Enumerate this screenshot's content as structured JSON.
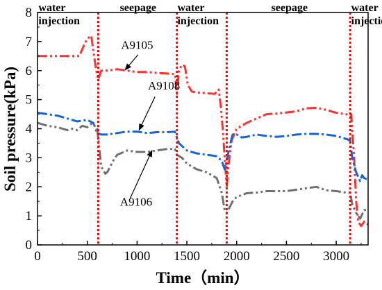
{
  "chart_data": {
    "type": "line",
    "xlabel": "Time（min）",
    "ylabel": "Soil pressure(kPa)",
    "xlim": [
      0,
      3320
    ],
    "ylim": [
      0,
      8
    ],
    "xticks": [
      "0",
      "500",
      "1000",
      "1500",
      "2000",
      "2500",
      "3000"
    ],
    "yticks": [
      "0",
      "1",
      "2",
      "3",
      "4",
      "5",
      "6",
      "7",
      "8"
    ],
    "grid": false,
    "legend": "none",
    "phase_boundaries": [
      610,
      1400,
      1900,
      3140
    ],
    "phase_labels": [
      {
        "lines": [
          "water",
          "injection"
        ],
        "x": 10,
        "align": "start"
      },
      {
        "lines": [
          "seepage"
        ],
        "x": 1010,
        "align": "middle"
      },
      {
        "lines": [
          "water",
          "injection"
        ],
        "x": 1405,
        "align": "start"
      },
      {
        "lines": [
          "seepage"
        ],
        "x": 2530,
        "align": "middle"
      },
      {
        "lines": [
          "water",
          "injection"
        ],
        "x": 3150,
        "align": "start"
      }
    ],
    "series": [
      {
        "name": "A9105",
        "color": "#ff3030",
        "dash": "14,4,3,4,3,4",
        "x": [
          0,
          100,
          200,
          300,
          420,
          470,
          500,
          540,
          560,
          590,
          610,
          640,
          700,
          800,
          900,
          1000,
          1100,
          1200,
          1300,
          1380,
          1400,
          1420,
          1450,
          1480,
          1510,
          1550,
          1600,
          1700,
          1780,
          1820,
          1840,
          1860,
          1880,
          1900,
          1920,
          1950,
          2000,
          2100,
          2200,
          2300,
          2400,
          2500,
          2600,
          2700,
          2800,
          2900,
          3000,
          3100,
          3140,
          3150,
          3180,
          3200,
          3220,
          3250,
          3280,
          3320
        ],
        "y": [
          6.5,
          6.5,
          6.5,
          6.5,
          6.5,
          6.9,
          7.1,
          7.2,
          6.7,
          6.0,
          5.7,
          6.0,
          6.0,
          6.05,
          6.0,
          5.95,
          5.95,
          5.92,
          5.9,
          5.88,
          5.2,
          6.0,
          6.2,
          6.15,
          5.5,
          5.28,
          5.25,
          5.22,
          5.2,
          5.35,
          4.8,
          4.0,
          3.0,
          2.0,
          2.8,
          3.6,
          4.0,
          4.2,
          4.35,
          4.5,
          4.52,
          4.56,
          4.6,
          4.7,
          4.72,
          4.65,
          4.55,
          4.5,
          4.45,
          4.5,
          3.0,
          1.5,
          0.8,
          0.65,
          0.8,
          0.7
        ]
      },
      {
        "name": "A9108",
        "color": "#1565d8",
        "dash": "14,4,3,4",
        "x": [
          0,
          100,
          200,
          300,
          400,
          500,
          560,
          600,
          640,
          700,
          800,
          900,
          1000,
          1100,
          1200,
          1300,
          1380,
          1420,
          1500,
          1600,
          1700,
          1750,
          1800,
          1850,
          1880,
          1900,
          1930,
          1960,
          2000,
          2050,
          2100,
          2200,
          2300,
          2400,
          2500,
          2600,
          2700,
          2800,
          2900,
          3000,
          3100,
          3140,
          3160,
          3200,
          3240,
          3260,
          3280,
          3320
        ],
        "y": [
          4.55,
          4.5,
          4.45,
          4.35,
          4.25,
          4.3,
          4.2,
          3.85,
          3.8,
          3.8,
          3.85,
          3.9,
          3.9,
          3.85,
          3.88,
          3.88,
          3.9,
          3.5,
          3.25,
          3.15,
          3.1,
          3.08,
          3.05,
          2.9,
          2.6,
          2.9,
          3.4,
          3.8,
          3.8,
          3.7,
          3.72,
          3.8,
          3.75,
          3.72,
          3.75,
          3.8,
          3.82,
          3.82,
          3.8,
          3.75,
          3.65,
          3.6,
          3.0,
          2.5,
          2.2,
          2.4,
          2.3,
          2.25
        ]
      },
      {
        "name": "A9106",
        "color": "#707070",
        "dash": "14,4,3,4,3,4",
        "x": [
          0,
          100,
          200,
          300,
          350,
          400,
          450,
          500,
          550,
          600,
          640,
          680,
          700,
          760,
          800,
          900,
          1000,
          1100,
          1200,
          1300,
          1380,
          1400,
          1450,
          1500,
          1600,
          1700,
          1800,
          1850,
          1880,
          1900,
          1930,
          1960,
          2000,
          2100,
          2200,
          2300,
          2400,
          2500,
          2600,
          2700,
          2800,
          2900,
          3000,
          3100,
          3140,
          3160,
          3200,
          3240,
          3280,
          3320
        ],
        "y": [
          4.2,
          4.1,
          4.05,
          3.95,
          4.0,
          3.95,
          4.1,
          4.05,
          4.2,
          4.0,
          2.7,
          2.45,
          2.5,
          2.9,
          3.1,
          3.25,
          3.2,
          3.2,
          3.25,
          3.3,
          3.3,
          3.1,
          3.0,
          2.8,
          2.6,
          2.5,
          2.3,
          1.8,
          1.2,
          1.1,
          1.3,
          1.5,
          1.65,
          1.78,
          1.8,
          1.85,
          1.85,
          1.85,
          1.9,
          1.95,
          2.0,
          1.88,
          1.85,
          1.8,
          1.8,
          1.4,
          1.1,
          0.9,
          1.2,
          1.2
        ]
      }
    ],
    "annotations": [
      {
        "text": "A9105",
        "text_x": 1000,
        "text_y": 6.75,
        "arrow_from": [
          1010,
          6.55
        ],
        "arrow_to": [
          880,
          6.02
        ]
      },
      {
        "text": "A9108",
        "text_x": 1270,
        "text_y": 5.35,
        "arrow_from": [
          1180,
          5.1
        ],
        "arrow_to": [
          1020,
          3.95
        ]
      },
      {
        "text": "A9106",
        "text_x": 990,
        "text_y": 1.35,
        "arrow_from": [
          930,
          1.6
        ],
        "arrow_to": [
          1150,
          3.25
        ]
      }
    ]
  }
}
